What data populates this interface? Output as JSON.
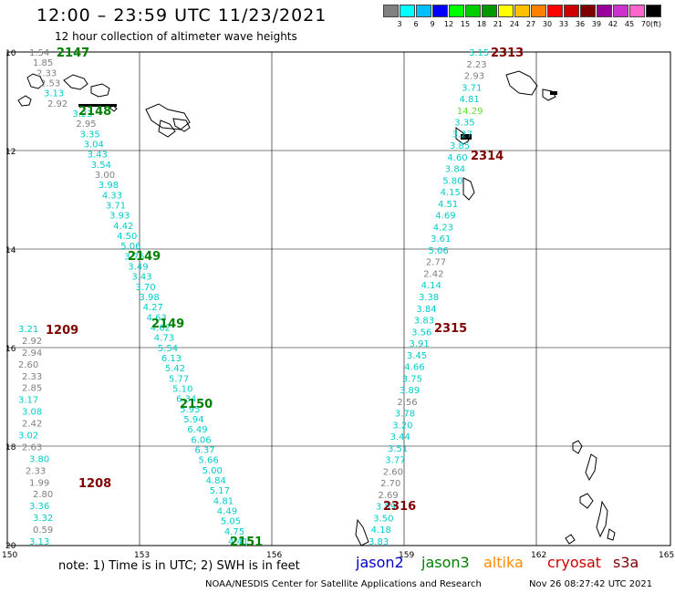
{
  "header": {
    "title": "12:00 – 23:59 UTC 11/23/2021",
    "subtitle": "12 hour collection of altimeter wave heights"
  },
  "legend": {
    "unit": "(ft)",
    "colors": [
      "#808080",
      "#00ffff",
      "#00bfff",
      "#0000ff",
      "#00ff00",
      "#00cc00",
      "#009900",
      "#ffff00",
      "#ffc000",
      "#ff8000",
      "#ff0000",
      "#cc0000",
      "#800000",
      "#990099",
      "#cc33cc",
      "#ff66cc",
      "#000000"
    ],
    "labels": [
      "3",
      "6",
      "9",
      "12",
      "15",
      "18",
      "21",
      "24",
      "27",
      "30",
      "33",
      "36",
      "39",
      "42",
      "45",
      "70"
    ]
  },
  "axes": {
    "lat_labels": [
      "10",
      "12",
      "14",
      "16",
      "18",
      "20"
    ],
    "lon_labels": [
      "150",
      "153",
      "156",
      "159",
      "162",
      "165"
    ]
  },
  "tracks": [
    {
      "name": "west_north",
      "points": [
        [
          "1.54",
          "#808080"
        ],
        [
          "1.85",
          "#808080"
        ],
        [
          "2.33",
          "#808080"
        ],
        [
          "2.53",
          "#808080"
        ],
        [
          "3.13",
          "#00cccc"
        ],
        [
          "2.92",
          "#808080"
        ],
        [
          "3.23",
          "#00cccc"
        ],
        [
          "2.95",
          "#808080"
        ],
        [
          "3.35",
          "#00cccc"
        ],
        [
          "3.04",
          "#00cccc"
        ],
        [
          "3.43",
          "#00cccc"
        ],
        [
          "3.54",
          "#00cccc"
        ],
        [
          "3.00",
          "#808080"
        ],
        [
          "3.98",
          "#00cccc"
        ],
        [
          "4.33",
          "#00cccc"
        ],
        [
          "3.71",
          "#00cccc"
        ],
        [
          "3.93",
          "#00cccc"
        ],
        [
          "4.42",
          "#00cccc"
        ],
        [
          "4.50",
          "#00cccc"
        ],
        [
          "5.06",
          "#00cccc"
        ],
        [
          "3.75",
          "#00cccc"
        ],
        [
          "3.49",
          "#00cccc"
        ],
        [
          "3.43",
          "#00cccc"
        ],
        [
          "3.70",
          "#00cccc"
        ],
        [
          "3.98",
          "#00cccc"
        ],
        [
          "4.27",
          "#00cccc"
        ],
        [
          "4.63",
          "#00cccc"
        ],
        [
          "4.62",
          "#00cccc"
        ],
        [
          "4.73",
          "#00cccc"
        ],
        [
          "5.54",
          "#00cccc"
        ],
        [
          "6.13",
          "#00cccc"
        ],
        [
          "5.42",
          "#00cccc"
        ],
        [
          "5.77",
          "#00cccc"
        ],
        [
          "5.10",
          "#00cccc"
        ],
        [
          "6.34",
          "#00cccc"
        ],
        [
          "5.95",
          "#00cccc"
        ],
        [
          "5.94",
          "#00cccc"
        ],
        [
          "6.49",
          "#00cccc"
        ],
        [
          "6.06",
          "#00cccc"
        ],
        [
          "6.37",
          "#00cccc"
        ],
        [
          "5.66",
          "#00cccc"
        ],
        [
          "5.00",
          "#00cccc"
        ],
        [
          "4.84",
          "#00cccc"
        ],
        [
          "5.17",
          "#00cccc"
        ],
        [
          "4.81",
          "#00cccc"
        ],
        [
          "4.49",
          "#00cccc"
        ],
        [
          "5.05",
          "#00cccc"
        ],
        [
          "4.75",
          "#00cccc"
        ],
        [
          "4.41",
          "#00cccc"
        ]
      ]
    },
    {
      "name": "west_south",
      "points": [
        [
          "3.21",
          "#00cccc"
        ],
        [
          "2.92",
          "#808080"
        ],
        [
          "2.94",
          "#808080"
        ],
        [
          "2.60",
          "#808080"
        ],
        [
          "2.33",
          "#808080"
        ],
        [
          "2.85",
          "#808080"
        ],
        [
          "3.17",
          "#00cccc"
        ],
        [
          "3.08",
          "#00cccc"
        ],
        [
          "2.42",
          "#808080"
        ],
        [
          "3.02",
          "#00cccc"
        ],
        [
          "2.63",
          "#808080"
        ],
        [
          "3.80",
          "#00cccc"
        ],
        [
          "2.33",
          "#808080"
        ],
        [
          "1.99",
          "#808080"
        ],
        [
          "2.80",
          "#808080"
        ],
        [
          "3.36",
          "#00cccc"
        ],
        [
          "3.32",
          "#00cccc"
        ],
        [
          "0.59",
          "#808080"
        ],
        [
          "3.13",
          "#00cccc"
        ]
      ]
    },
    {
      "name": "east",
      "points": [
        [
          "3.15",
          "#00cccc"
        ],
        [
          "2.23",
          "#808080"
        ],
        [
          "2.93",
          "#808080"
        ],
        [
          "3.71",
          "#00cccc"
        ],
        [
          "4.81",
          "#00cccc"
        ],
        [
          "14.29",
          "#66dd33"
        ],
        [
          "3.35",
          "#00cccc"
        ],
        [
          "3.27",
          "#00cccc"
        ],
        [
          "3.85",
          "#00cccc"
        ],
        [
          "4.60",
          "#00cccc"
        ],
        [
          "3.84",
          "#00cccc"
        ],
        [
          "5.80",
          "#00cccc"
        ],
        [
          "4.15",
          "#00cccc"
        ],
        [
          "4.51",
          "#00cccc"
        ],
        [
          "4.69",
          "#00cccc"
        ],
        [
          "4.23",
          "#00cccc"
        ],
        [
          "3.61",
          "#00cccc"
        ],
        [
          "5.06",
          "#00cccc"
        ],
        [
          "2.77",
          "#808080"
        ],
        [
          "2.42",
          "#808080"
        ],
        [
          "4.14",
          "#00cccc"
        ],
        [
          "3.38",
          "#00cccc"
        ],
        [
          "3.84",
          "#00cccc"
        ],
        [
          "3.83",
          "#00cccc"
        ],
        [
          "3.56",
          "#00cccc"
        ],
        [
          "3.91",
          "#00cccc"
        ],
        [
          "3.45",
          "#00cccc"
        ],
        [
          "4.66",
          "#00cccc"
        ],
        [
          "3.75",
          "#00cccc"
        ],
        [
          "3.89",
          "#00cccc"
        ],
        [
          "2.56",
          "#808080"
        ],
        [
          "3.78",
          "#00cccc"
        ],
        [
          "3.20",
          "#00cccc"
        ],
        [
          "3.44",
          "#00cccc"
        ],
        [
          "3.51",
          "#00cccc"
        ],
        [
          "3.77",
          "#00cccc"
        ],
        [
          "2.60",
          "#808080"
        ],
        [
          "2.70",
          "#808080"
        ],
        [
          "2.69",
          "#808080"
        ],
        [
          "3.59",
          "#00cccc"
        ],
        [
          "3.50",
          "#00cccc"
        ],
        [
          "4.18",
          "#00cccc"
        ],
        [
          "3.83",
          "#00cccc"
        ]
      ]
    }
  ],
  "pass_labels": [
    {
      "text": "2147",
      "color": "#008000"
    },
    {
      "text": "2148",
      "color": "#008000"
    },
    {
      "text": "2149",
      "color": "#008000"
    },
    {
      "text": "2149",
      "color": "#008000"
    },
    {
      "text": "2150",
      "color": "#008000"
    },
    {
      "text": "2151",
      "color": "#008000"
    },
    {
      "text": "1209",
      "color": "#800000"
    },
    {
      "text": "1208",
      "color": "#800000"
    },
    {
      "text": "2313",
      "color": "#800000"
    },
    {
      "text": "2314",
      "color": "#800000"
    },
    {
      "text": "2315",
      "color": "#800000"
    },
    {
      "text": "2316",
      "color": "#800000"
    }
  ],
  "footer": {
    "note": "note:  1) Time is in UTC;  2) SWH is in feet",
    "satellites": [
      {
        "name": "jason2",
        "color": "#0000cc"
      },
      {
        "name": "jason3",
        "color": "#008000"
      },
      {
        "name": "altika",
        "color": "#ff8c00"
      },
      {
        "name": "cryosat",
        "color": "#cc0000"
      },
      {
        "name": "s3a",
        "color": "#800000"
      }
    ],
    "credit": "NOAA/NESDIS Center for Satellite Applications and Research",
    "timestamp": "Nov 26 08:27:42 UTC 2021"
  }
}
